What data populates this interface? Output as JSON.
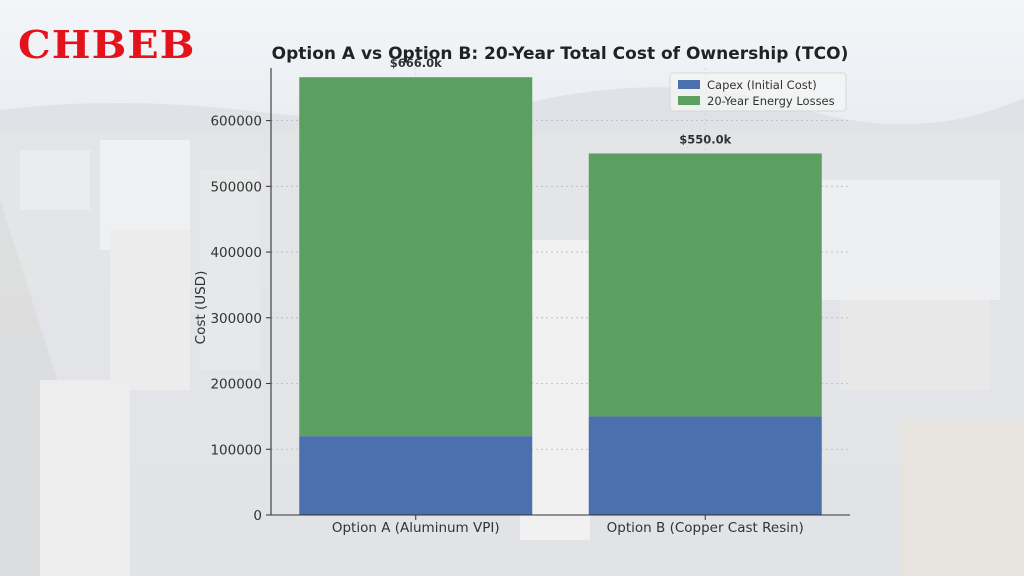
{
  "brand": {
    "logo_text": "CHBEB"
  },
  "chart_data": {
    "type": "bar",
    "stacked": true,
    "title": "Option A vs Option B: 20-Year Total Cost of Ownership (TCO)",
    "xlabel": "",
    "ylabel": "Cost (USD)",
    "categories": [
      "Option A (Aluminum VPI)",
      "Option B (Copper Cast Resin)"
    ],
    "series": [
      {
        "name": "Capex (Initial Cost)",
        "color": "#4c6fad",
        "values": [
          120000,
          150000
        ]
      },
      {
        "name": "20-Year Energy Losses",
        "color": "#5ba060",
        "values": [
          546000,
          400000
        ]
      }
    ],
    "totals_labels": [
      "$666.0k",
      "$550.0k"
    ],
    "ylim": [
      0,
      680000
    ],
    "yticks": [
      0,
      100000,
      200000,
      300000,
      400000,
      500000,
      600000
    ],
    "ytick_labels": [
      "0",
      "100000",
      "200000",
      "300000",
      "400000",
      "500000",
      "600000"
    ],
    "grid": true,
    "legend": "top-right"
  }
}
